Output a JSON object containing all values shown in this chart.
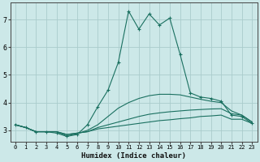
{
  "title": "",
  "xlabel": "Humidex (Indice chaleur)",
  "ylabel": "",
  "xlim": [
    -0.5,
    23.5
  ],
  "ylim": [
    2.6,
    7.6
  ],
  "yticks": [
    3,
    4,
    5,
    6,
    7
  ],
  "xticks": [
    0,
    1,
    2,
    3,
    4,
    5,
    6,
    7,
    8,
    9,
    10,
    11,
    12,
    13,
    14,
    15,
    16,
    17,
    18,
    19,
    20,
    21,
    22,
    23
  ],
  "bg_color": "#cce8e8",
  "grid_color": "#aacccc",
  "line_color": "#1a7060",
  "lines": [
    {
      "x": [
        0,
        1,
        2,
        3,
        4,
        5,
        6,
        7,
        8,
        9,
        10,
        11,
        12,
        13,
        14,
        15,
        16,
        17,
        18,
        19,
        20,
        21,
        22,
        23
      ],
      "y": [
        3.2,
        3.1,
        2.95,
        2.95,
        2.95,
        2.85,
        2.9,
        2.95,
        3.05,
        3.1,
        3.15,
        3.2,
        3.25,
        3.3,
        3.35,
        3.38,
        3.42,
        3.45,
        3.5,
        3.52,
        3.55,
        3.4,
        3.4,
        3.25
      ],
      "marker": null
    },
    {
      "x": [
        0,
        1,
        2,
        3,
        4,
        5,
        6,
        7,
        8,
        9,
        10,
        11,
        12,
        13,
        14,
        15,
        16,
        17,
        18,
        19,
        20,
        21,
        22,
        23
      ],
      "y": [
        3.2,
        3.1,
        2.95,
        2.95,
        2.95,
        2.85,
        2.9,
        2.95,
        3.1,
        3.2,
        3.3,
        3.4,
        3.5,
        3.58,
        3.63,
        3.67,
        3.7,
        3.73,
        3.75,
        3.77,
        3.78,
        3.6,
        3.55,
        3.3
      ],
      "marker": null
    },
    {
      "x": [
        0,
        1,
        2,
        3,
        4,
        5,
        6,
        7,
        8,
        9,
        10,
        11,
        12,
        13,
        14,
        15,
        16,
        17,
        18,
        19,
        20,
        21,
        22,
        23
      ],
      "y": [
        3.2,
        3.1,
        2.95,
        2.95,
        2.95,
        2.8,
        2.88,
        3.0,
        3.2,
        3.5,
        3.8,
        4.0,
        4.15,
        4.25,
        4.3,
        4.3,
        4.28,
        4.2,
        4.12,
        4.05,
        4.0,
        3.7,
        3.55,
        3.3
      ],
      "marker": null
    },
    {
      "x": [
        0,
        1,
        2,
        3,
        4,
        5,
        6,
        7,
        8,
        9,
        10,
        11,
        12,
        13,
        14,
        15,
        16,
        17,
        18,
        19,
        20,
        21,
        22,
        23
      ],
      "y": [
        3.2,
        3.1,
        2.95,
        2.95,
        2.9,
        2.78,
        2.85,
        3.2,
        3.85,
        4.45,
        5.45,
        7.3,
        6.65,
        7.2,
        6.8,
        7.05,
        5.75,
        4.35,
        4.2,
        4.15,
        4.05,
        3.55,
        3.5,
        3.25
      ],
      "marker": "+"
    }
  ]
}
